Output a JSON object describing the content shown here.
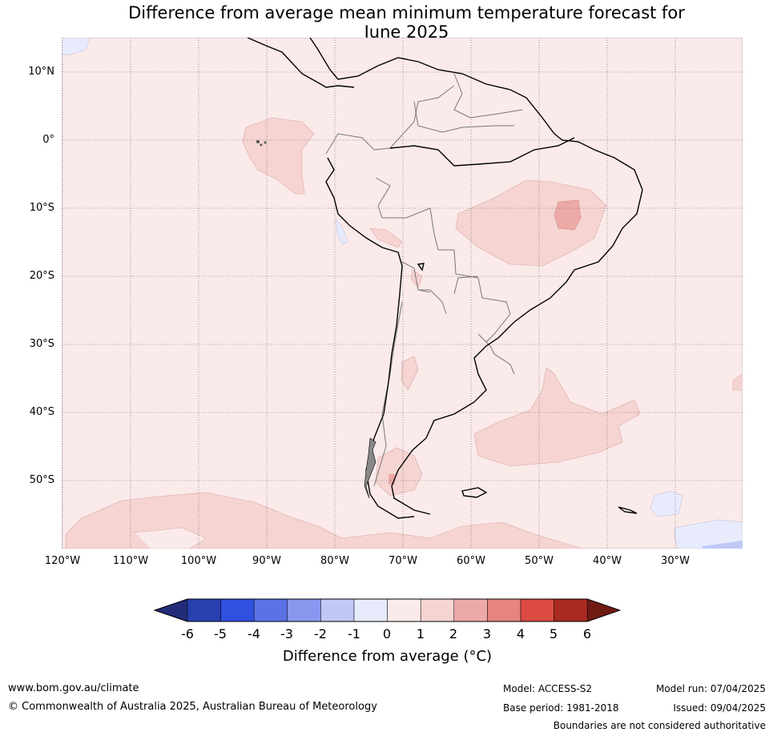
{
  "title_line1": "Difference from average mean minimum temperature forecast for",
  "title_line2": "June 2025",
  "lat_labels": [
    "10°N",
    "0°",
    "10°S",
    "20°S",
    "30°S",
    "40°S",
    "50°S"
  ],
  "lon_labels": [
    "120°W",
    "110°W",
    "100°W",
    "90°W",
    "80°W",
    "70°W",
    "60°W",
    "50°W",
    "40°W",
    "30°W"
  ],
  "colorbar": {
    "ticks": [
      "-6",
      "-5",
      "-4",
      "-3",
      "-2",
      "-1",
      "0",
      "1",
      "2",
      "3",
      "4",
      "5",
      "6"
    ],
    "label": "Difference from average (°C)",
    "colors": [
      "#222c78",
      "#283fb0",
      "#3050e0",
      "#5a72e6",
      "#8898ee",
      "#c0c8f6",
      "#e8ebfc",
      "#fbeaea",
      "#f5d4d2",
      "#eda9a6",
      "#e6847e",
      "#da4a40",
      "#a82a20",
      "#701a14"
    ]
  },
  "footer": {
    "website": "www.bom.gov.au/climate",
    "copyright": "© Commonwealth of Australia 2025, Australian Bureau of Meteorology",
    "model": "Model: ACCESS-S2",
    "base_period": "Base period: 1981-2018",
    "model_run": "Model run: 07/04/2025",
    "issued": "Issued: 09/04/2025",
    "disclaimer": "Boundaries are not considered authoritative"
  }
}
